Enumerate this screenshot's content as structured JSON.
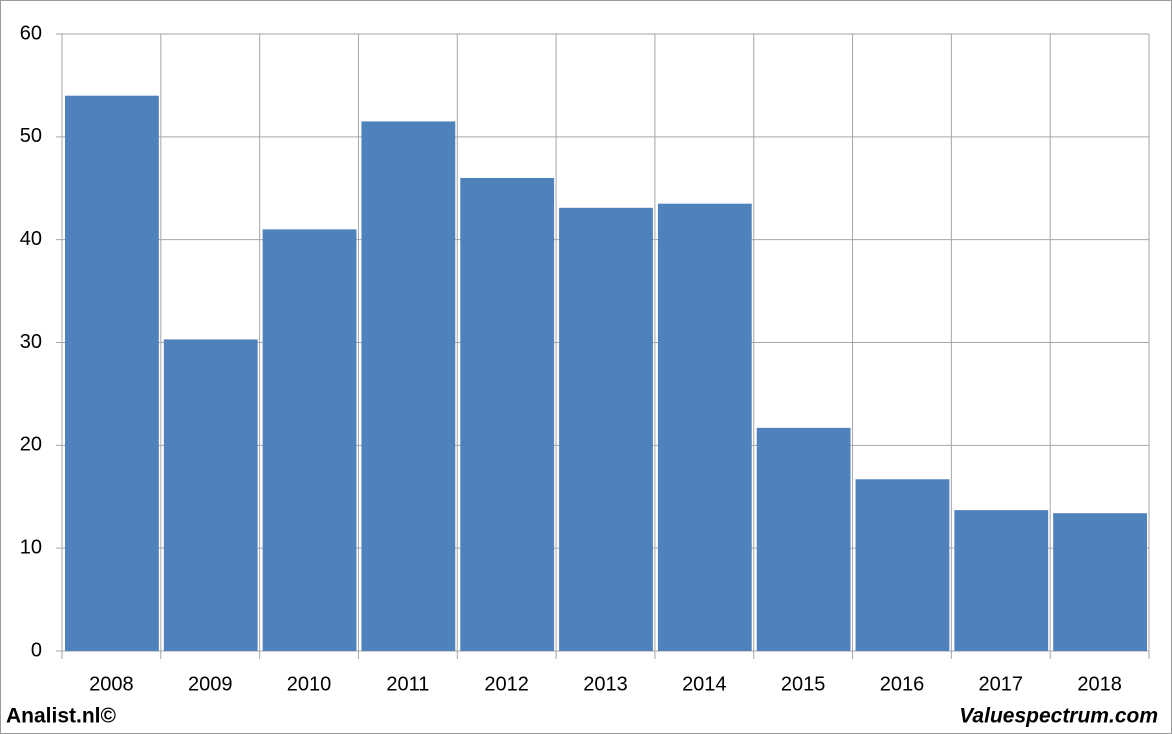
{
  "chart_data": {
    "type": "bar",
    "categories": [
      "2008",
      "2009",
      "2010",
      "2011",
      "2012",
      "2013",
      "2014",
      "2015",
      "2016",
      "2017",
      "2018"
    ],
    "values": [
      54.0,
      30.3,
      41.0,
      51.5,
      46.0,
      43.1,
      43.5,
      21.7,
      16.7,
      13.7,
      13.4
    ],
    "color": "#4f81bd",
    "ylim": [
      0,
      60
    ],
    "yticks": [
      0,
      10,
      20,
      30,
      40,
      50,
      60
    ],
    "grid": true
  },
  "footer": {
    "left": "Analist.nl©",
    "right": "Valuespectrum.com"
  }
}
